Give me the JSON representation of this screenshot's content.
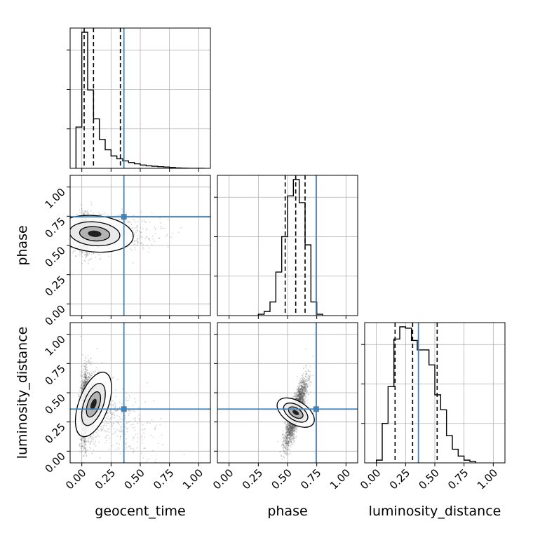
{
  "chart_data": {
    "type": "corner",
    "title": "",
    "parameters": [
      "geocent_time",
      "phase",
      "luminosity_distance"
    ],
    "axis_range": [
      -0.1,
      1.1
    ],
    "ticks": [
      0.0,
      0.25,
      0.5,
      0.75,
      1.0
    ],
    "tick_labels": [
      "0.00",
      "0.25",
      "0.50",
      "0.75",
      "1.00"
    ],
    "grid": true,
    "colors": {
      "truth": "#4682b4",
      "hist": "#000000",
      "quantile": "#000000",
      "grid": "#b0b0b0",
      "scatter": "#555555"
    },
    "truths": {
      "geocent_time": 0.36,
      "phase": 0.745,
      "luminosity_distance": 0.36
    },
    "quantiles": {
      "geocent_time": [
        0.02,
        0.1,
        0.33
      ],
      "phase": [
        0.48,
        0.57,
        0.65
      ],
      "luminosity_distance": [
        0.16,
        0.31,
        0.52
      ]
    },
    "histograms": {
      "geocent_time": {
        "bin_edges": [
          -0.05,
          0.0,
          0.05,
          0.1,
          0.15,
          0.2,
          0.25,
          0.3,
          0.35,
          0.4,
          0.45,
          0.5,
          0.55,
          0.6,
          0.65,
          0.7,
          0.75,
          0.8,
          0.85,
          0.9,
          0.95,
          1.0,
          1.05
        ],
        "counts": [
          1.0,
          3.3,
          1.9,
          1.2,
          0.7,
          0.45,
          0.3,
          0.23,
          0.18,
          0.14,
          0.11,
          0.08,
          0.06,
          0.05,
          0.04,
          0.03,
          0.02,
          0.01,
          0.005,
          0,
          0,
          0
        ]
      },
      "phase": {
        "bin_edges": [
          0.25,
          0.3,
          0.35,
          0.4,
          0.45,
          0.5,
          0.55,
          0.6,
          0.65,
          0.7,
          0.75,
          0.8
        ],
        "counts": [
          0.01,
          0.03,
          0.1,
          0.32,
          0.58,
          0.88,
          1.0,
          0.83,
          0.52,
          0.1,
          0.01
        ]
      },
      "luminosity_distance": {
        "bin_edges": [
          0.0,
          0.05,
          0.1,
          0.15,
          0.2,
          0.25,
          0.3,
          0.35,
          0.4,
          0.45,
          0.5,
          0.55,
          0.6,
          0.65,
          0.7,
          0.75,
          0.8,
          0.85
        ],
        "counts": [
          0.02,
          0.29,
          0.56,
          0.91,
          1.0,
          0.99,
          0.9,
          0.83,
          0.83,
          0.72,
          0.5,
          0.39,
          0.2,
          0.1,
          0.05,
          0.02,
          0.01
        ]
      }
    },
    "density": {
      "phase_vs_geocent_time": {
        "center": [
          0.05,
          0.6
        ],
        "spread": [
          0.09,
          0.075
        ],
        "tail": [
          0.4,
          0.0
        ]
      },
      "luminosity_distance_vs_geocent_time": {
        "center": [
          0.04,
          0.43
        ],
        "spread": [
          0.05,
          0.14
        ],
        "tail": [
          0.4,
          -0.28
        ]
      },
      "luminosity_distance_vs_phase": {
        "center": [
          0.57,
          0.33
        ],
        "spread": [
          0.045,
          0.14
        ],
        "corr": 0.85
      }
    }
  }
}
